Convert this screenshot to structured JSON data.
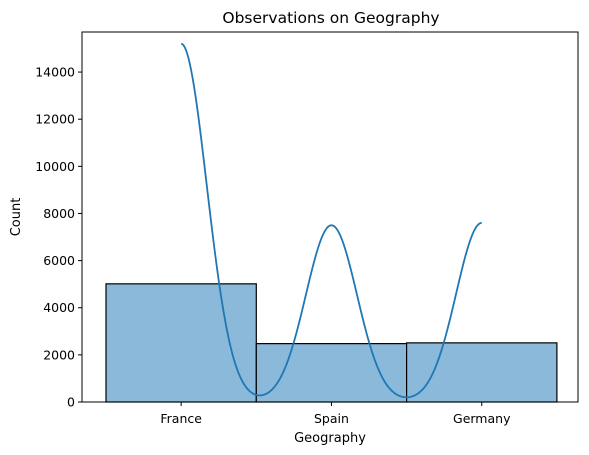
{
  "chart_data": {
    "type": "bar",
    "title": "Observations on Geography",
    "xlabel": "Geography",
    "ylabel": "Count",
    "categories": [
      "France",
      "Spain",
      "Germany"
    ],
    "values": [
      5014,
      2477,
      2509
    ],
    "ylim": [
      0,
      15700
    ],
    "yticks": [
      "0",
      "2000",
      "4000",
      "6000",
      "8000",
      "10000",
      "12000",
      "14000"
    ],
    "bar_color": "#8bb9da",
    "bar_edge_color": "#000000",
    "kde_color": "#1f77b4",
    "kde_peaks": [
      15200,
      7500,
      7600
    ],
    "grid": false,
    "legend": "none"
  }
}
